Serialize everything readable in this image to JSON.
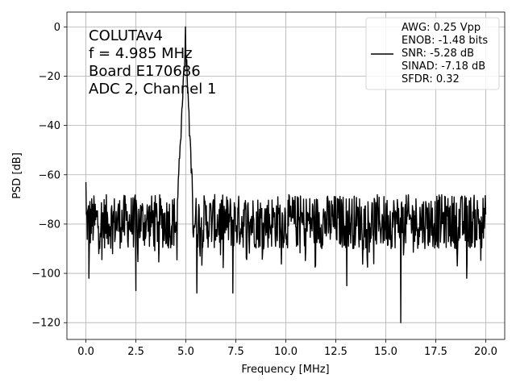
{
  "chart_data": {
    "type": "line",
    "xlabel": "Frequency [MHz]",
    "ylabel": "PSD [dB]",
    "xlim": [
      -0.95,
      20.95
    ],
    "ylim": [
      -126.8,
      6
    ],
    "xticks": [
      0.0,
      2.5,
      5.0,
      7.5,
      10.0,
      12.5,
      15.0,
      17.5,
      20.0
    ],
    "xtick_labels": [
      "0.0",
      "2.5",
      "5.0",
      "7.5",
      "10.0",
      "12.5",
      "15.0",
      "17.5",
      "20.0"
    ],
    "yticks": [
      0,
      -20,
      -40,
      -60,
      -80,
      -100,
      -120
    ],
    "ytick_labels": [
      "0",
      "−20",
      "−40",
      "−60",
      "−80",
      "−100",
      "−120"
    ],
    "grid": true,
    "line_color": "#000000",
    "annotation": [
      "COLUTAv4",
      "f = 4.985 MHz",
      "Board E170686",
      "ADC 2, Channel 1"
    ],
    "legend": {
      "placement": "top-right",
      "entries": [
        "AWG: 0.25 Vpp",
        "ENOB: -1.48 bits",
        "SNR: -5.28 dB",
        "SINAD: -7.18 dB",
        "SFDR: 0.32"
      ]
    },
    "series": [
      {
        "peak": {
          "x": 4.985,
          "y": 0
        },
        "noise_floor": {
          "mean": -80,
          "band": [
            -90,
            -68
          ]
        },
        "shoulder": [
          [
            4.6,
            -62
          ],
          [
            4.75,
            -40
          ],
          [
            4.85,
            -20
          ],
          [
            4.95,
            -8
          ],
          [
            4.985,
            0
          ],
          [
            5.02,
            -8
          ],
          [
            5.1,
            -22
          ],
          [
            5.2,
            -42
          ],
          [
            5.35,
            -66
          ]
        ],
        "spikes": [
          [
            0.0,
            -63
          ],
          [
            0.15,
            -102
          ],
          [
            2.5,
            -107
          ],
          [
            4.98,
            0
          ],
          [
            5.55,
            -108
          ],
          [
            7.35,
            -108
          ],
          [
            13.05,
            -105
          ],
          [
            15.75,
            -120
          ],
          [
            19.05,
            -102
          ]
        ]
      }
    ]
  }
}
